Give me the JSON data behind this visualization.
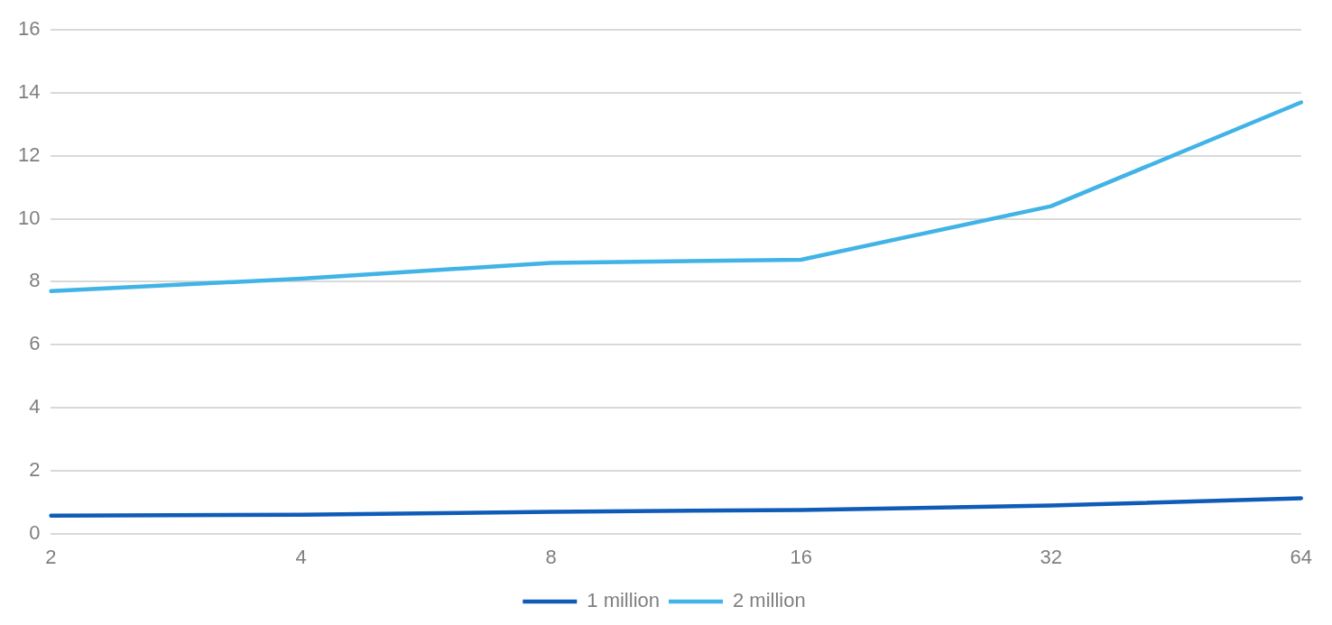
{
  "chart_data": {
    "type": "line",
    "categories": [
      "2",
      "4",
      "8",
      "16",
      "32",
      "64"
    ],
    "series": [
      {
        "name": "1 million",
        "color": "#0f5cb8",
        "values": [
          0.57,
          0.6,
          0.69,
          0.75,
          0.89,
          1.12
        ]
      },
      {
        "name": "2 million",
        "color": "#41b3e6",
        "values": [
          7.7,
          8.1,
          8.6,
          8.7,
          10.4,
          13.7
        ]
      }
    ],
    "ylim": [
      0,
      16
    ],
    "yticks": [
      0,
      2,
      4,
      6,
      8,
      10,
      12,
      14,
      16
    ],
    "grid": "y",
    "legend": "bottom",
    "marker": "none",
    "line_style": "solid"
  }
}
